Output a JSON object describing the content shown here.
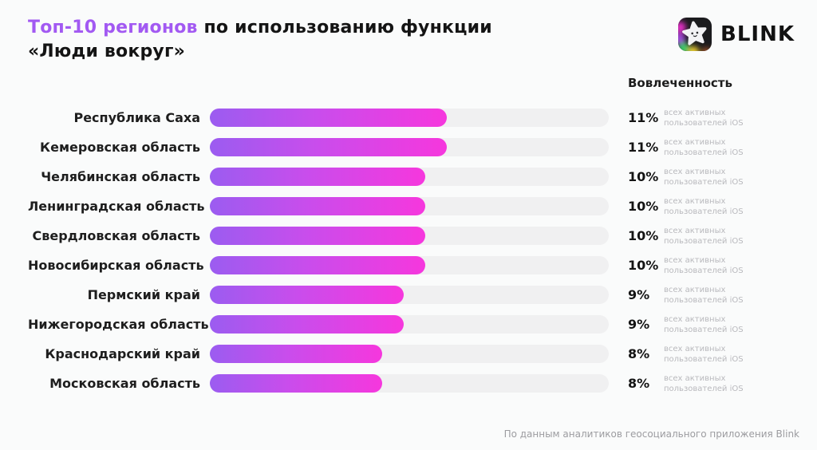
{
  "header": {
    "title_highlight": "Топ-10 регионов",
    "title_rest": " по использованию функции «Люди вокруг»"
  },
  "logo": {
    "wordmark": "BLINK",
    "icon": "blink-star-app-icon"
  },
  "columns": {
    "engagement": "Вовлеченность"
  },
  "rows": [
    {
      "region": "Республика Саха",
      "value": "11%",
      "caption": "всех активных пользователей iOS"
    },
    {
      "region": "Кемеровская область",
      "value": "11%",
      "caption": "всех активных пользователей iOS"
    },
    {
      "region": "Челябинская область",
      "value": "10%",
      "caption": "всех активных пользователей iOS"
    },
    {
      "region": "Ленинградская область",
      "value": "10%",
      "caption": "всех активных пользователей iOS"
    },
    {
      "region": "Свердловская область",
      "value": "10%",
      "caption": "всех активных пользователей iOS"
    },
    {
      "region": "Новосибирская область",
      "value": "10%",
      "caption": "всех активных пользователей iOS"
    },
    {
      "region": "Пермский край",
      "value": "9%",
      "caption": "всех активных пользователей iOS"
    },
    {
      "region": "Нижегородская область",
      "value": "9%",
      "caption": "всех активных пользователей iOS"
    },
    {
      "region": "Краснодарский край",
      "value": "8%",
      "caption": "всех активных пользователей iOS"
    },
    {
      "region": "Московская область",
      "value": "8%",
      "caption": "всех активных пользователей iOS"
    }
  ],
  "footer": {
    "source": "По данным аналитиков геосоциального приложения Blink"
  },
  "colors": {
    "accent_purple": "#A259F2",
    "bar_gradient_start": "#9B5CF0",
    "bar_gradient_end": "#F637DD",
    "bar_track": "#F0F0F1",
    "background": "#FAFBFB",
    "caption_gray": "#B9B9BD"
  },
  "chart_data": {
    "type": "bar",
    "orientation": "horizontal",
    "title": "Топ-10 регионов по использованию функции «Люди вокруг»",
    "categories": [
      "Республика Саха",
      "Кемеровская область",
      "Челябинская область",
      "Ленинградская область",
      "Свердловская область",
      "Новосибирская область",
      "Пермский край",
      "Нижегородская область",
      "Краснодарский край",
      "Московская область"
    ],
    "values": [
      11,
      11,
      10,
      10,
      10,
      10,
      9,
      9,
      8,
      8
    ],
    "value_unit": "% всех активных пользователей iOS",
    "xlabel": "Вовлеченность",
    "ylabel": "",
    "xlim": [
      0,
      18.5
    ],
    "grid": false,
    "legend": false
  }
}
